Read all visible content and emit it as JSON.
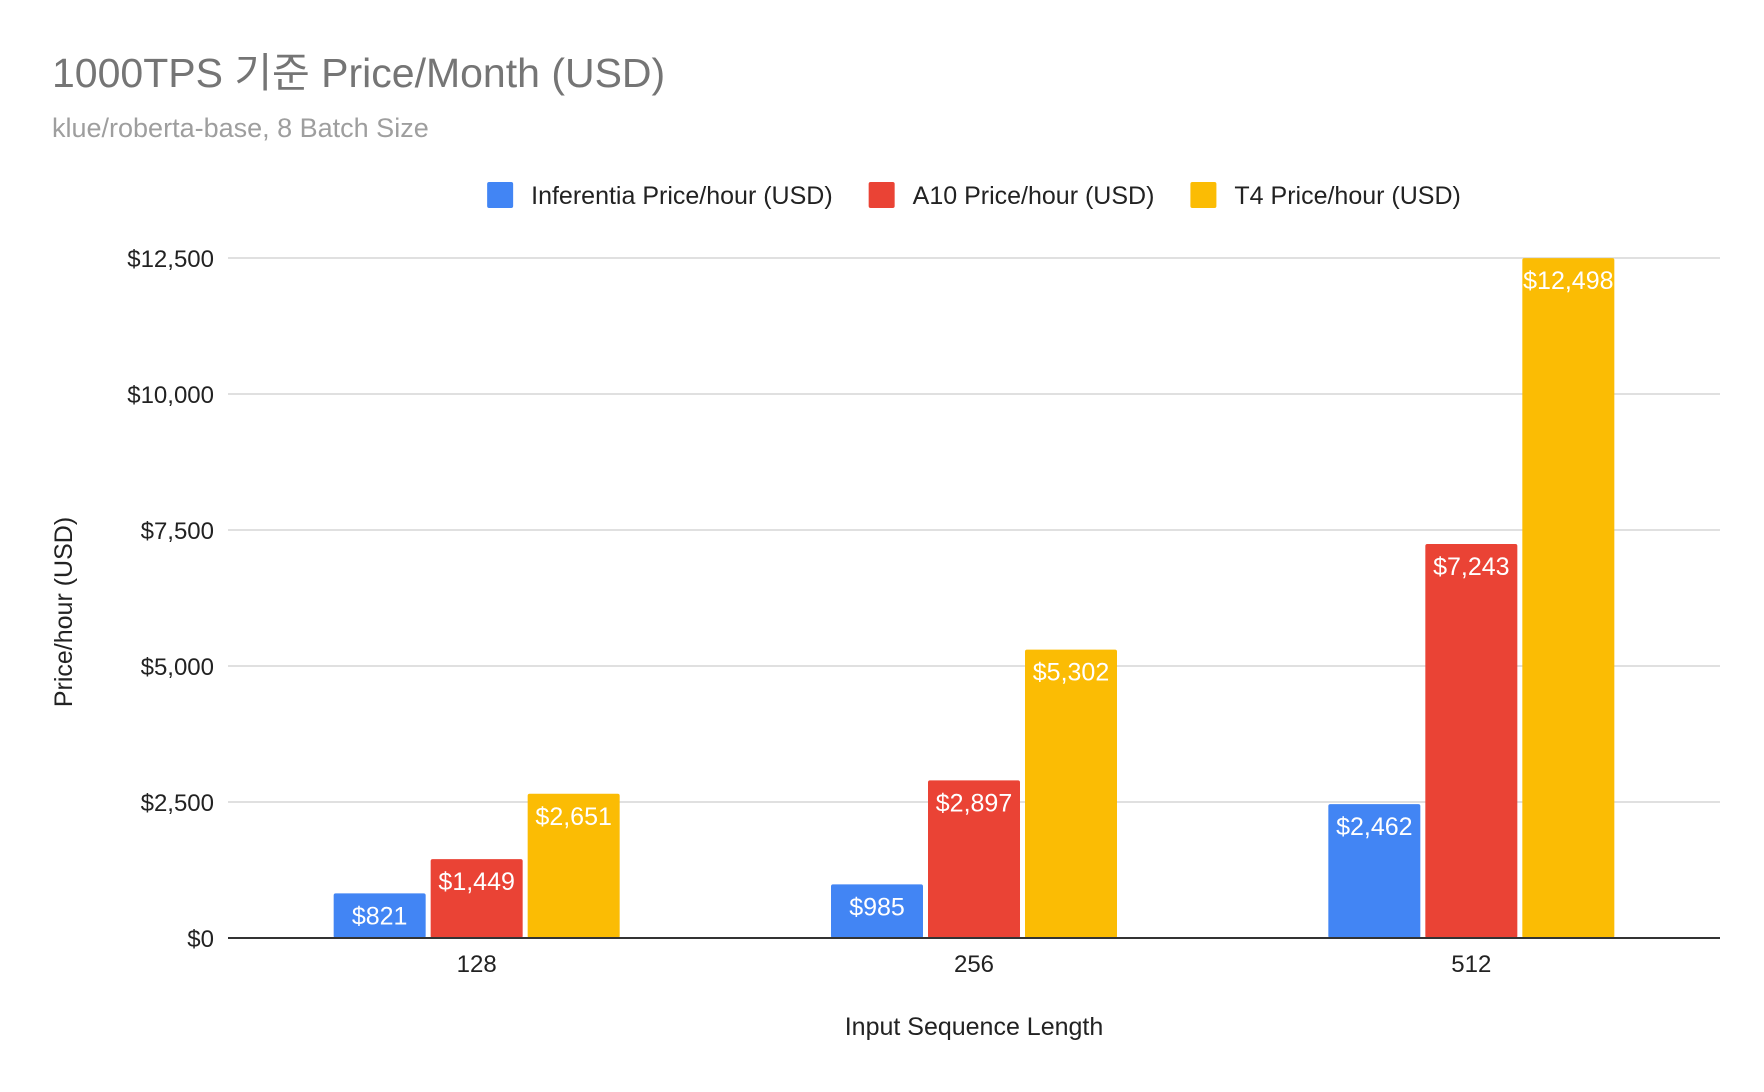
{
  "chart_data": {
    "type": "bar",
    "title": "1000TPS 기준 Price/Month (USD)",
    "subtitle": "klue/roberta-base, 8 Batch Size",
    "xlabel": "Input Sequence Length",
    "ylabel": "Price/hour (USD)",
    "categories": [
      "128",
      "256",
      "512"
    ],
    "ylim": [
      0,
      12500
    ],
    "yticks": [
      0,
      2500,
      5000,
      7500,
      10000,
      12500
    ],
    "ytick_labels": [
      "$0",
      "$2,500",
      "$5,000",
      "$7,500",
      "$10,000",
      "$12,500"
    ],
    "grid": true,
    "legend_position": "top",
    "series": [
      {
        "name": "Inferentia Price/hour (USD)",
        "color": "#4285f4",
        "values": [
          821,
          985,
          2462
        ],
        "labels": [
          "$821",
          "$985",
          "$2,462"
        ]
      },
      {
        "name": "A10 Price/hour (USD)",
        "color": "#ea4335",
        "values": [
          1449,
          2897,
          7243
        ],
        "labels": [
          "$1,449",
          "$2,897",
          "$7,243"
        ]
      },
      {
        "name": "T4 Price/hour (USD)",
        "color": "#fbbc04",
        "values": [
          2651,
          5302,
          12498
        ],
        "labels": [
          "$2,651",
          "$5,302",
          "$12,498"
        ]
      }
    ]
  }
}
